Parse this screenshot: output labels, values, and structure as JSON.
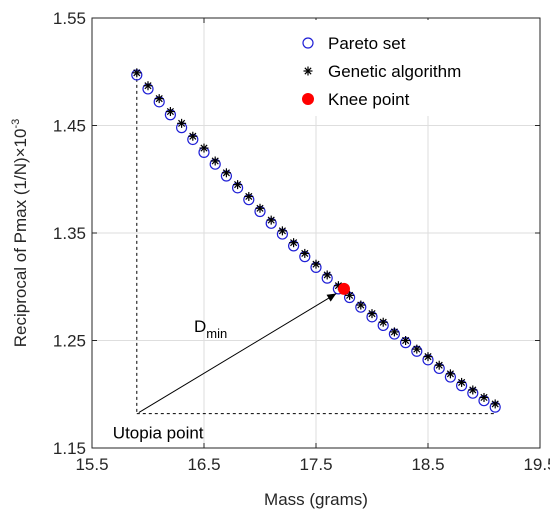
{
  "chart_data": {
    "type": "scatter",
    "xlabel": "Mass (grams)",
    "ylabel": "Reciprocal of Pmax (1/N)",
    "ylabel_exponent_base": "×10",
    "ylabel_exponent_power": "-3",
    "xlim": [
      15.5,
      19.5
    ],
    "ylim": [
      1.15,
      1.55
    ],
    "xticks": [
      15.5,
      16.5,
      17.5,
      18.5,
      19.5
    ],
    "xtick_labels": [
      "15.5",
      "16.5",
      "17.5",
      "18.5",
      "19.5"
    ],
    "yticks": [
      1.15,
      1.25,
      1.35,
      1.45,
      1.55
    ],
    "ytick_labels": [
      "1.15",
      "1.25",
      "1.35",
      "1.45",
      "1.55"
    ],
    "grid": true,
    "legend_position": "top-right",
    "colors": {
      "pareto": "#1f1fd6",
      "ga": "#000000",
      "knee": "#ff0000"
    },
    "series": [
      {
        "name": "Pareto set",
        "marker": "circle-open",
        "points": [
          [
            15.9,
            1.497
          ],
          [
            16.0,
            1.484
          ],
          [
            16.1,
            1.472
          ],
          [
            16.2,
            1.46
          ],
          [
            16.3,
            1.448
          ],
          [
            16.4,
            1.437
          ],
          [
            16.5,
            1.425
          ],
          [
            16.6,
            1.414
          ],
          [
            16.7,
            1.403
          ],
          [
            16.8,
            1.392
          ],
          [
            16.9,
            1.381
          ],
          [
            17.0,
            1.37
          ],
          [
            17.1,
            1.359
          ],
          [
            17.2,
            1.349
          ],
          [
            17.3,
            1.338
          ],
          [
            17.4,
            1.328
          ],
          [
            17.5,
            1.318
          ],
          [
            17.6,
            1.308
          ],
          [
            17.7,
            1.298
          ],
          [
            17.8,
            1.29
          ],
          [
            17.9,
            1.281
          ],
          [
            18.0,
            1.272
          ],
          [
            18.1,
            1.264
          ],
          [
            18.2,
            1.256
          ],
          [
            18.3,
            1.248
          ],
          [
            18.4,
            1.24
          ],
          [
            18.5,
            1.232
          ],
          [
            18.6,
            1.224
          ],
          [
            18.7,
            1.216
          ],
          [
            18.8,
            1.208
          ],
          [
            18.9,
            1.201
          ],
          [
            19.0,
            1.194
          ],
          [
            19.1,
            1.188
          ]
        ]
      },
      {
        "name": "Genetic algorithm",
        "marker": "asterisk",
        "points": [
          [
            15.9,
            1.499
          ],
          [
            16.0,
            1.487
          ],
          [
            16.1,
            1.475
          ],
          [
            16.2,
            1.463
          ],
          [
            16.3,
            1.452
          ],
          [
            16.4,
            1.44
          ],
          [
            16.5,
            1.429
          ],
          [
            16.6,
            1.417
          ],
          [
            16.7,
            1.406
          ],
          [
            16.8,
            1.395
          ],
          [
            16.9,
            1.384
          ],
          [
            17.0,
            1.373
          ],
          [
            17.1,
            1.362
          ],
          [
            17.2,
            1.352
          ],
          [
            17.3,
            1.341
          ],
          [
            17.4,
            1.331
          ],
          [
            17.5,
            1.321
          ],
          [
            17.6,
            1.311
          ],
          [
            17.7,
            1.301
          ],
          [
            17.8,
            1.292
          ],
          [
            17.9,
            1.283
          ],
          [
            18.0,
            1.275
          ],
          [
            18.1,
            1.267
          ],
          [
            18.2,
            1.258
          ],
          [
            18.3,
            1.25
          ],
          [
            18.4,
            1.242
          ],
          [
            18.5,
            1.235
          ],
          [
            18.6,
            1.227
          ],
          [
            18.7,
            1.219
          ],
          [
            18.8,
            1.211
          ],
          [
            18.9,
            1.204
          ],
          [
            19.0,
            1.197
          ],
          [
            19.1,
            1.191
          ]
        ]
      },
      {
        "name": "Knee point",
        "marker": "filled-dot",
        "points": [
          [
            17.75,
            1.298
          ]
        ]
      }
    ],
    "annotations": {
      "utopia_label": "Utopia point",
      "dmin_main": "D",
      "dmin_sub": "min",
      "utopia_point": [
        15.9,
        1.182
      ],
      "corner_top": [
        15.9,
        1.499
      ],
      "corner_right": [
        19.1,
        1.182
      ]
    }
  }
}
